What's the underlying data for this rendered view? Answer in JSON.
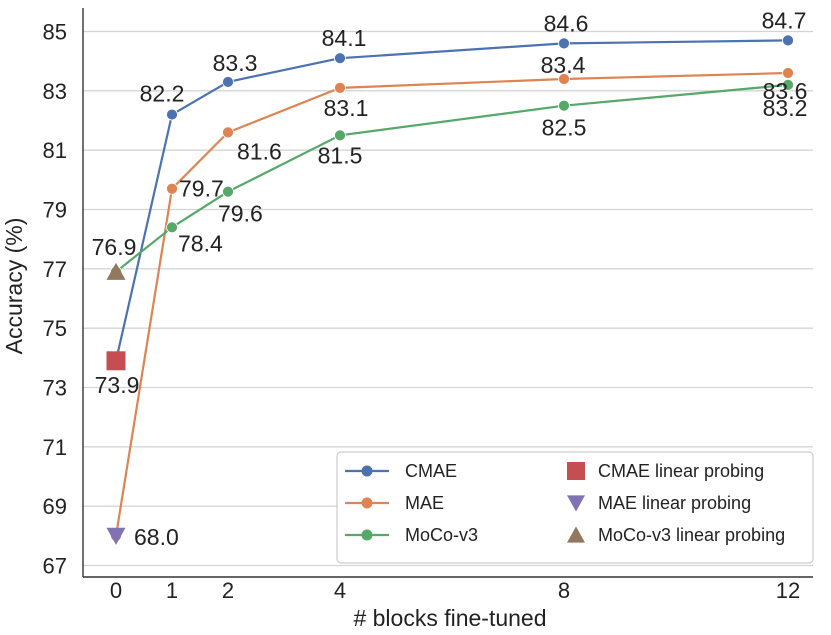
{
  "chart_data": {
    "type": "line",
    "title": "",
    "xlabel": "# blocks fine-tuned",
    "ylabel": "Accuracy (%)",
    "x_ticks": [
      0,
      1,
      2,
      4,
      8,
      12
    ],
    "x_tick_labels": [
      "0",
      "1",
      "2",
      "4",
      "8",
      "12"
    ],
    "y_ticks": [
      67,
      69,
      71,
      73,
      75,
      77,
      79,
      81,
      83,
      85
    ],
    "y_tick_labels": [
      "67",
      "69",
      "71",
      "73",
      "75",
      "77",
      "79",
      "81",
      "83",
      "85"
    ],
    "ylim": [
      67,
      85.6
    ],
    "grid": "horizontal",
    "legend_position": "lower-right",
    "series": [
      {
        "name": "CMAE",
        "color": "#4c72b0",
        "marker": "circle",
        "x": [
          0,
          1,
          2,
          4,
          8,
          12
        ],
        "values": [
          73.9,
          82.2,
          83.3,
          84.1,
          84.6,
          84.7
        ],
        "labels": [
          "",
          "82.2",
          "83.3",
          "84.1",
          "84.6",
          "84.7"
        ]
      },
      {
        "name": "MAE",
        "color": "#dd8452",
        "marker": "circle",
        "x": [
          0,
          1,
          2,
          4,
          8,
          12
        ],
        "values": [
          68.0,
          79.7,
          81.6,
          83.1,
          83.4,
          83.6
        ],
        "labels": [
          "",
          "79.7",
          "81.6",
          "83.1",
          "83.4",
          "83.6"
        ]
      },
      {
        "name": "MoCo-v3",
        "color": "#55a868",
        "marker": "circle",
        "x": [
          0,
          1,
          2,
          4,
          8,
          12
        ],
        "values": [
          76.9,
          78.4,
          79.6,
          81.5,
          82.5,
          83.2
        ],
        "labels": [
          "",
          "78.4",
          "79.6",
          "81.5",
          "82.5",
          "83.2"
        ]
      }
    ],
    "linear_probing": [
      {
        "name": "CMAE linear probing",
        "color": "#c44e52",
        "marker": "square",
        "x": 0,
        "value": 73.9,
        "label": "73.9"
      },
      {
        "name": "MAE linear probing",
        "color": "#8172b3",
        "marker": "triangle-down",
        "x": 0,
        "value": 68.0,
        "label": "68.0"
      },
      {
        "name": "MoCo-v3 linear probing",
        "color": "#937860",
        "marker": "triangle-up",
        "x": 0,
        "value": 76.9,
        "label": "76.9"
      }
    ]
  }
}
